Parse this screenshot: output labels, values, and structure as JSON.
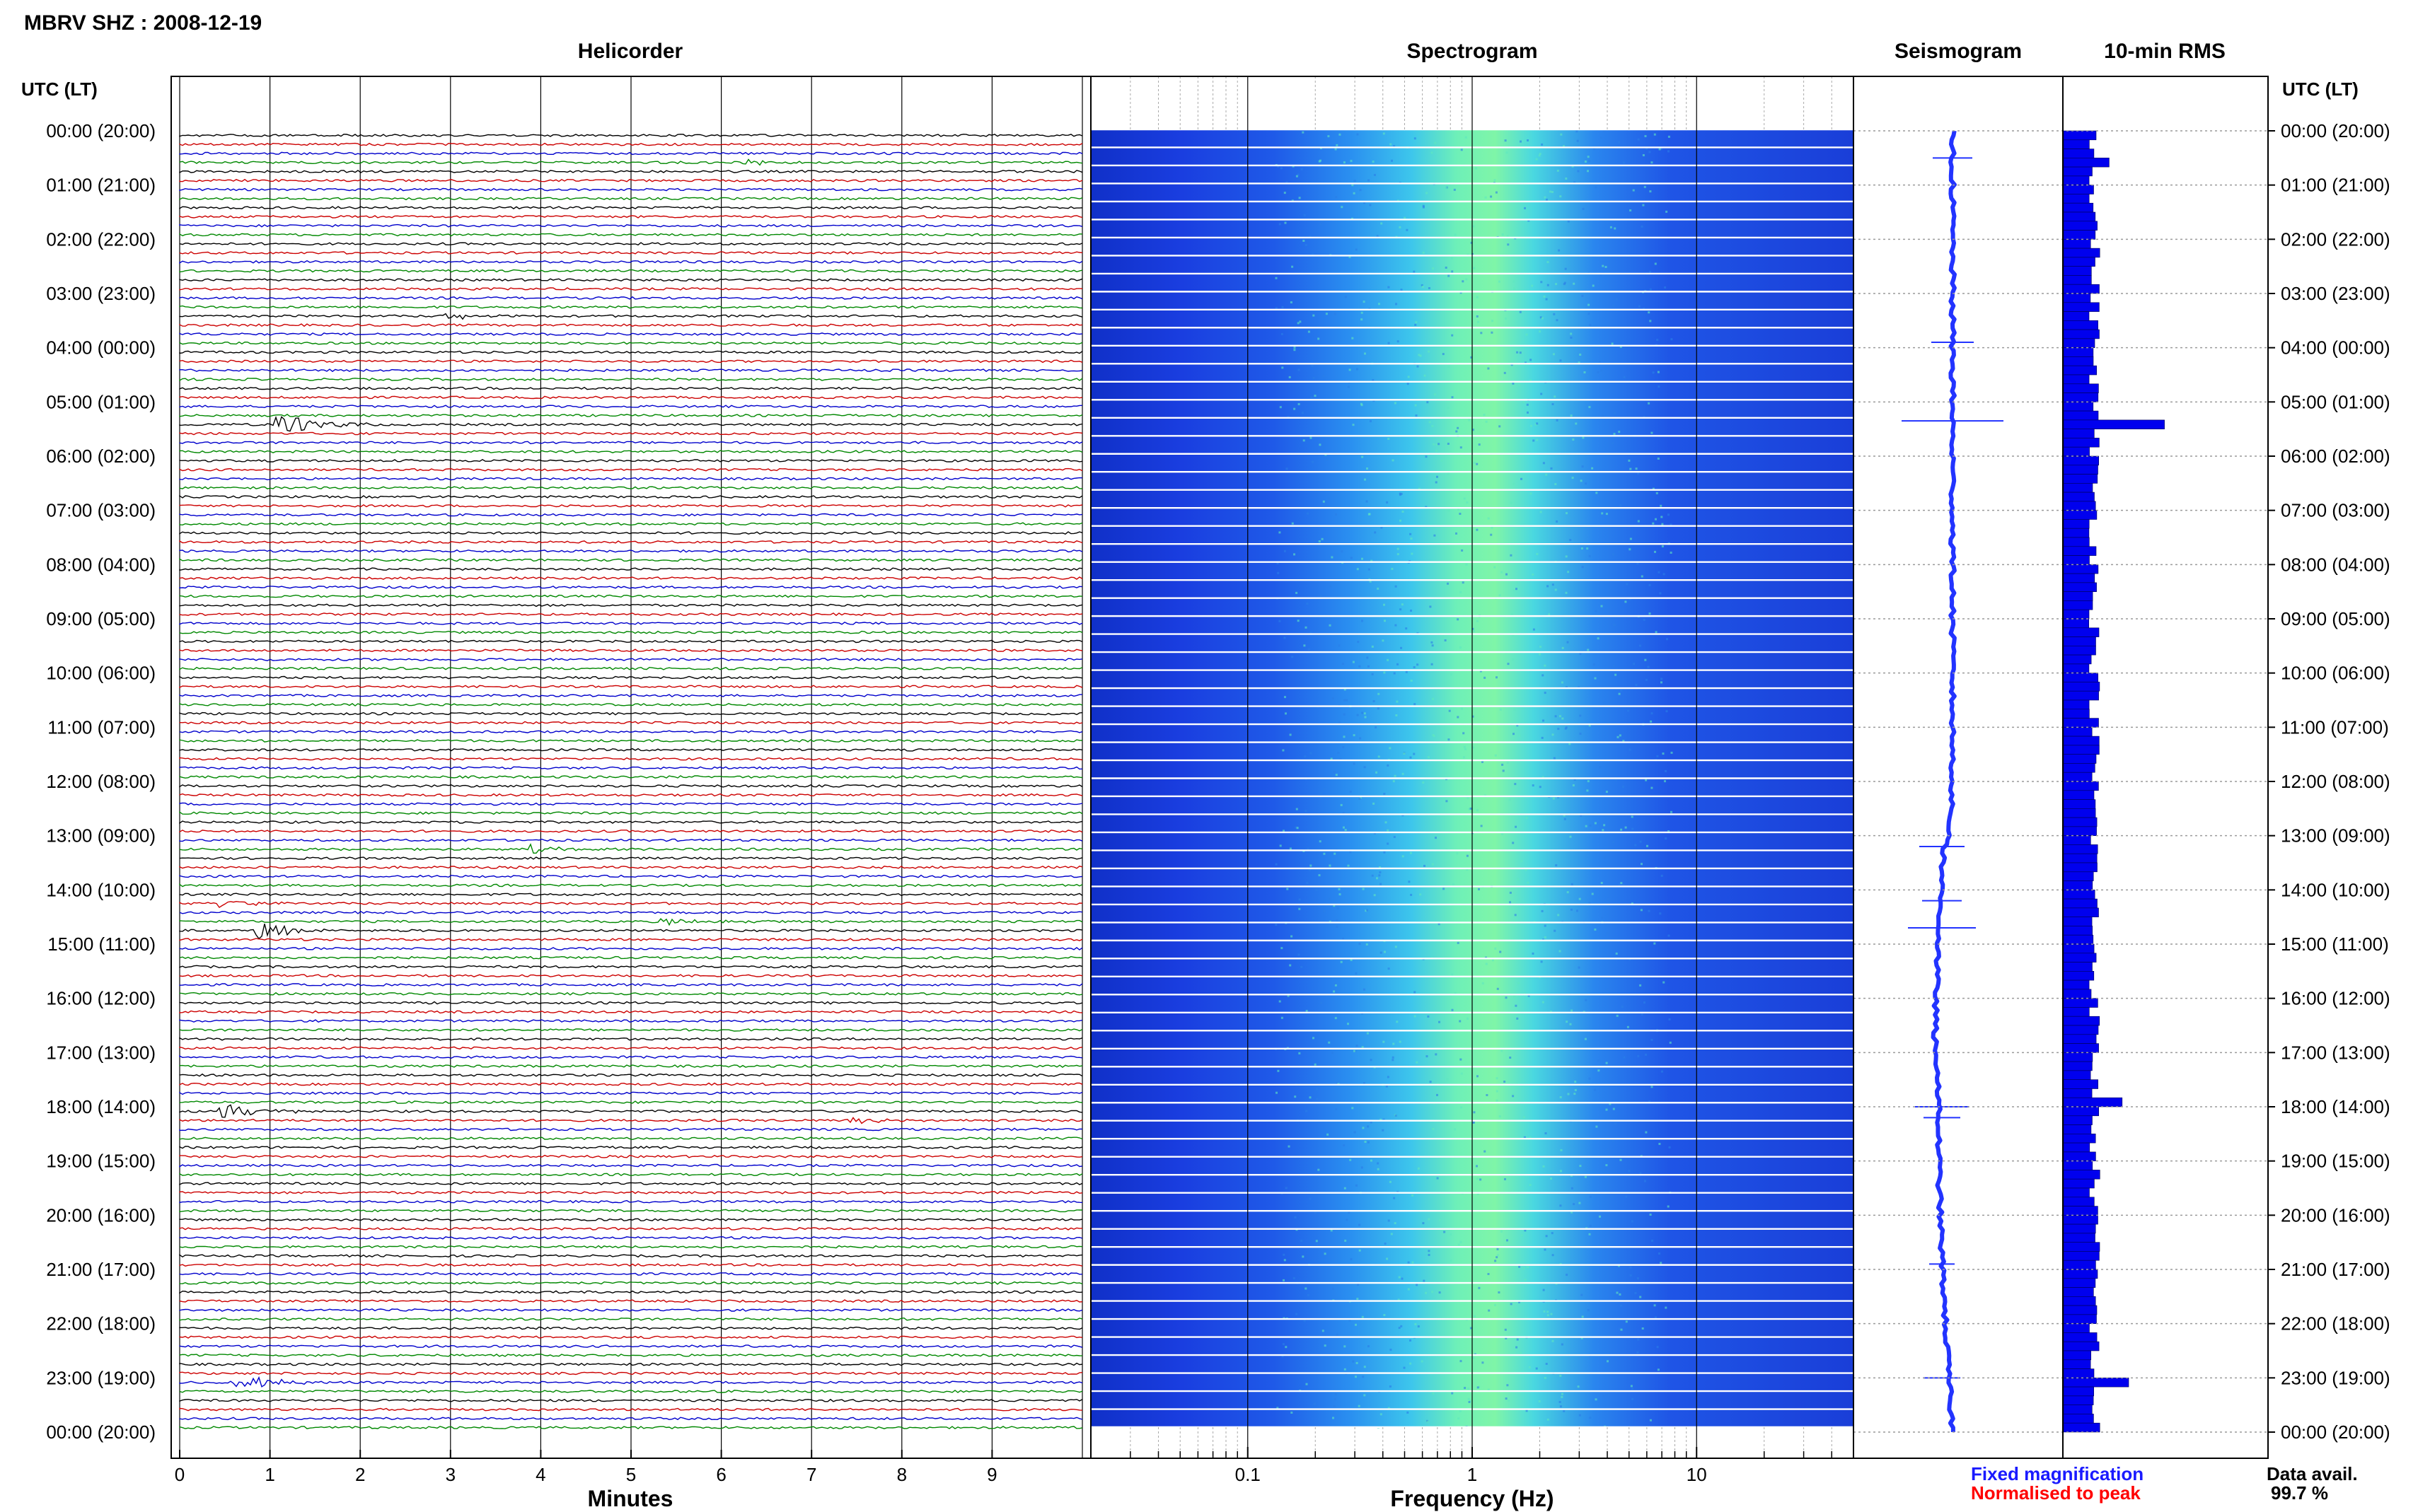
{
  "station_title": "MBRV SHZ : 2008-12-19",
  "panels": {
    "helicorder": "Helicorder",
    "spectrogram": "Spectrogram",
    "seismogram": "Seismogram",
    "rms": "10-min RMS"
  },
  "time_axis_label": "UTC (LT)",
  "time_labels": [
    "00:00 (20:00)",
    "01:00 (21:00)",
    "02:00 (22:00)",
    "03:00 (23:00)",
    "04:00 (00:00)",
    "05:00 (01:00)",
    "06:00 (02:00)",
    "07:00 (03:00)",
    "08:00 (04:00)",
    "09:00 (05:00)",
    "10:00 (06:00)",
    "11:00 (07:00)",
    "12:00 (08:00)",
    "13:00 (09:00)",
    "14:00 (10:00)",
    "15:00 (11:00)",
    "16:00 (12:00)",
    "17:00 (13:00)",
    "18:00 (14:00)",
    "19:00 (15:00)",
    "20:00 (16:00)",
    "21:00 (17:00)",
    "22:00 (18:00)",
    "23:00 (19:00)",
    "00:00 (20:00)"
  ],
  "x_axes": {
    "helicorder": {
      "label": "Minutes",
      "ticks": [
        "0",
        "1",
        "2",
        "3",
        "4",
        "5",
        "6",
        "7",
        "8",
        "9"
      ]
    },
    "spectrogram": {
      "label": "Frequency (Hz)",
      "ticks": [
        "0.1",
        "1",
        "10"
      ],
      "scale": "log"
    }
  },
  "legend": {
    "fixed": "Fixed magnification",
    "normalised": "Normalised to peak",
    "fixed_color": "#1a1aff",
    "normalised_color": "#ff0000"
  },
  "data_avail": {
    "label": "Data avail.",
    "value": "99.7 %"
  },
  "colors": {
    "trace_cycle": [
      "#000000",
      "#cc0000",
      "#0000cc",
      "#008800"
    ],
    "spectrogram_low": "#0000cc",
    "spectrogram_high": "#66ff99",
    "rms_bar": "#0000ee",
    "seismogram": "#2233ff"
  },
  "chart_data": [
    {
      "type": "line",
      "title": "Helicorder",
      "xlabel": "Minutes",
      "xlim": [
        0,
        10
      ],
      "rows": 144,
      "minutes_per_row": 10,
      "events": [
        {
          "time_utc": "00:30",
          "minute": 6.3,
          "amplitude": "small"
        },
        {
          "time_utc": "03:20",
          "minute": 3.0,
          "amplitude": "small"
        },
        {
          "time_utc": "05:20",
          "minute": 1.1,
          "amplitude": "large"
        },
        {
          "time_utc": "13:10",
          "minute": 3.9,
          "amplitude": "small"
        },
        {
          "time_utc": "14:10",
          "minute": 0.4,
          "amplitude": "small"
        },
        {
          "time_utc": "14:30",
          "minute": 5.4,
          "amplitude": "small"
        },
        {
          "time_utc": "14:40",
          "minute": 0.9,
          "amplitude": "medium"
        },
        {
          "time_utc": "18:00",
          "minute": 0.5,
          "amplitude": "medium"
        },
        {
          "time_utc": "18:10",
          "minute": 7.5,
          "amplitude": "small"
        },
        {
          "time_utc": "23:00",
          "minute": 0.7,
          "amplitude": "medium"
        }
      ]
    },
    {
      "type": "heatmap",
      "title": "Spectrogram",
      "xlabel": "Frequency (Hz)",
      "xscale": "log",
      "xlim": [
        0.02,
        50
      ],
      "peak_band_hz": [
        0.7,
        1.5
      ]
    },
    {
      "type": "line",
      "title": "Seismogram",
      "note": "24-hour long-period trace with drift"
    },
    {
      "type": "bar",
      "title": "10-min RMS",
      "rows": 144,
      "peaks": [
        {
          "time_utc": "00:30",
          "value": 1.4
        },
        {
          "time_utc": "05:20",
          "value": 3.1
        },
        {
          "time_utc": "17:50",
          "value": 1.8
        },
        {
          "time_utc": "23:00",
          "value": 2.0
        }
      ]
    }
  ]
}
